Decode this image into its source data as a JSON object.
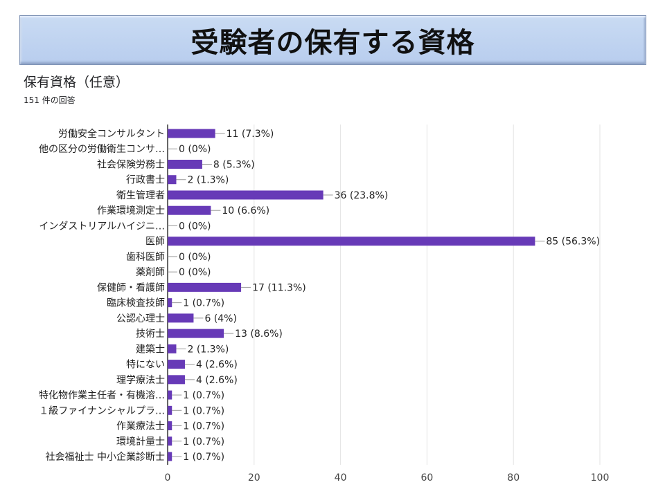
{
  "banner": {
    "title": "受験者の保有する資格"
  },
  "question": {
    "title": "保有資格（任意）",
    "response_count": "151 件の回答"
  },
  "chart_data": {
    "type": "bar",
    "orientation": "horizontal",
    "title": "保有資格（任意）",
    "xlabel": "",
    "ylabel": "",
    "xlim": [
      0,
      100
    ],
    "x_ticks": [
      0,
      20,
      40,
      60,
      80,
      100
    ],
    "grid": true,
    "bar_color": "#673ab7",
    "categories": [
      "労働安全コンサルタント",
      "他の区分の労働衛生コンサ…",
      "社会保険労務士",
      "行政書士",
      "衛生管理者",
      "作業環境測定士",
      "インダストリアルハイジニ…",
      "医師",
      "歯科医師",
      "薬剤師",
      "保健師・看護師",
      "臨床検査技師",
      "公認心理士",
      "技術士",
      "建築士",
      "特にない",
      "理学療法士",
      "特化物作業主任者・有機溶…",
      "１級ファイナンシャルプラ…",
      "作業療法士",
      "環境計量士",
      "社会福祉士 中小企業診断士"
    ],
    "values": [
      11,
      0,
      8,
      2,
      36,
      10,
      0,
      85,
      0,
      0,
      17,
      1,
      6,
      13,
      2,
      4,
      4,
      1,
      1,
      1,
      1,
      1
    ],
    "data_labels": [
      "11 (7.3%)",
      "0 (0%)",
      "8 (5.3%)",
      "2 (1.3%)",
      "36 (23.8%)",
      "10 (6.6%)",
      "0 (0%)",
      "85 (56.3%)",
      "0 (0%)",
      "0 (0%)",
      "17 (11.3%)",
      "1 (0.7%)",
      "6 (4%)",
      "13 (8.6%)",
      "2 (1.3%)",
      "4 (2.6%)",
      "4 (2.6%)",
      "1 (0.7%)",
      "1 (0.7%)",
      "1 (0.7%)",
      "1 (0.7%)",
      "1 (0.7%)"
    ]
  }
}
